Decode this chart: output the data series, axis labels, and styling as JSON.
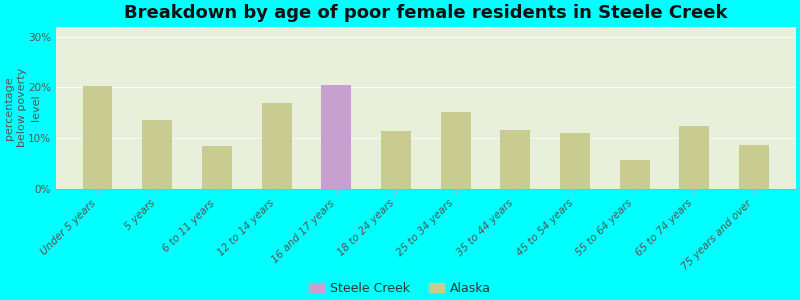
{
  "title": "Breakdown by age of poor female residents in Steele Creek",
  "ylabel": "percentage\nbelow poverty\nlevel",
  "categories": [
    "Under 5 years",
    "5 years",
    "6 to 11 years",
    "12 to 14 years",
    "16 and 17 years",
    "18 to 24 years",
    "25 to 34 years",
    "35 to 44 years",
    "45 to 54 years",
    "55 to 64 years",
    "65 to 74 years",
    "75 years and over"
  ],
  "values": [
    20.2,
    13.5,
    8.5,
    17.0,
    20.5,
    11.5,
    15.2,
    11.7,
    11.0,
    5.8,
    12.5,
    8.7
  ],
  "bar_type": [
    "alaska",
    "alaska",
    "alaska",
    "alaska",
    "steele_creek",
    "alaska",
    "alaska",
    "alaska",
    "alaska",
    "alaska",
    "alaska",
    "alaska"
  ],
  "steele_creek_color": "#c8a0d0",
  "alaska_color": "#c8cc90",
  "background_color": "#00ffff",
  "plot_bg_color": "#e8f0dc",
  "ylim": [
    0,
    32
  ],
  "yticks": [
    0,
    10,
    20,
    30
  ],
  "ytick_labels": [
    "0%",
    "10%",
    "20%",
    "30%"
  ],
  "bar_width": 0.5,
  "title_fontsize": 13,
  "axis_label_fontsize": 8,
  "tick_fontsize": 7.5,
  "legend_labels": [
    "Steele Creek",
    "Alaska"
  ],
  "legend_marker_size": 10
}
